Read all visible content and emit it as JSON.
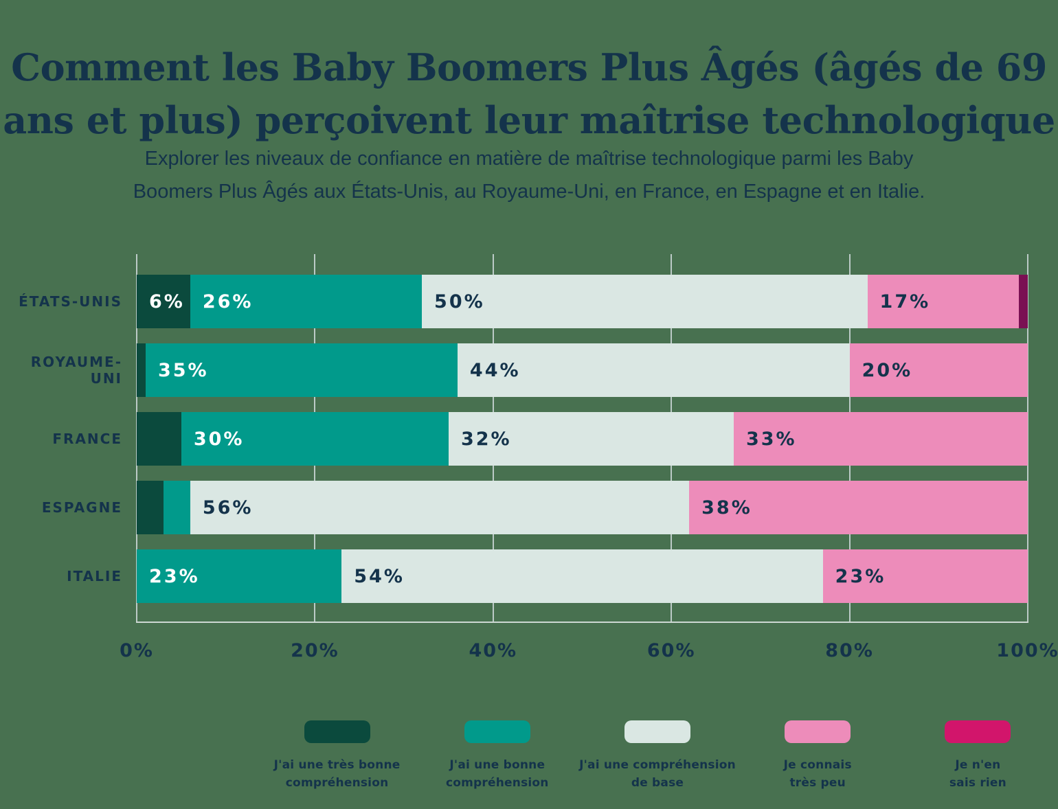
{
  "header": {
    "title_lines": [
      "Comment les Baby Boomers Plus Âgés (âgés de 69",
      "ans et plus) perçoivent leur maîtrise technologique"
    ],
    "subtitle_lines": [
      "Explorer les niveaux de confiance en matière de maîtrise technologique parmi les Baby",
      "Boomers Plus Âgés aux États-Unis, au Royaume-Uni, en France, en Espagne et en Italie."
    ]
  },
  "colors": {
    "background": "#487150",
    "text_navy": "#14334B",
    "text_white": "#FFFFFF",
    "gridline": "#BCCBC7",
    "axis_line": "#CDD8D3",
    "very_good": "#0B4A3D",
    "good": "#019A8B",
    "basic": "#DAE7E3",
    "very_little": "#ED8CBA",
    "nothing": "#7A1053",
    "nothing_legend_swatch": "#D2156B"
  },
  "chart_data": {
    "type": "bar",
    "stacked": true,
    "orientation": "horizontal",
    "grid": true,
    "legend_position": "bottom",
    "xlim": [
      0,
      100
    ],
    "x_tick_percents": [
      0,
      20,
      40,
      60,
      80,
      100
    ],
    "x_tick_labels": [
      "0%",
      "20%",
      "40%",
      "60%",
      "80%",
      "100%"
    ],
    "categories": [
      "ÉTATS-UNIS",
      "ROYAUME-UNI",
      "FRANCE",
      "ESPAGNE",
      "ITALIE"
    ],
    "series": [
      {
        "name": "J'ai une très bonne compréhension",
        "color_key": "very_good",
        "label_color": "white",
        "values": [
          6,
          1,
          5,
          3,
          0
        ]
      },
      {
        "name": "J'ai une bonne compréhension",
        "color_key": "good",
        "label_color": "white",
        "values": [
          26,
          35,
          30,
          3,
          23
        ]
      },
      {
        "name": "J'ai une compréhension de base",
        "color_key": "basic",
        "label_color": "navy",
        "values": [
          50,
          44,
          32,
          56,
          54
        ]
      },
      {
        "name": "Je connais très peu",
        "color_key": "very_little",
        "label_color": "navy",
        "values": [
          17,
          20,
          33,
          38,
          23
        ]
      },
      {
        "name": "Je n'en sais rien",
        "color_key": "nothing",
        "label_color": "white",
        "values": [
          1,
          0,
          0,
          0,
          0
        ]
      }
    ],
    "data_label_format": "{value}%",
    "data_label_min_value": 6
  },
  "legend": {
    "items": [
      {
        "color_key": "very_good",
        "label_lines": [
          "J'ai une très bonne",
          "compréhension"
        ]
      },
      {
        "color_key": "good",
        "label_lines": [
          "J'ai une bonne",
          "compréhension"
        ]
      },
      {
        "color_key": "basic",
        "label_lines": [
          "J'ai une compréhension",
          "de base"
        ]
      },
      {
        "color_key": "very_little",
        "label_lines": [
          "Je connais",
          "très peu"
        ]
      },
      {
        "color_key": "nothing_legend_swatch",
        "label_lines": [
          "Je n'en",
          "sais rien"
        ]
      }
    ]
  }
}
